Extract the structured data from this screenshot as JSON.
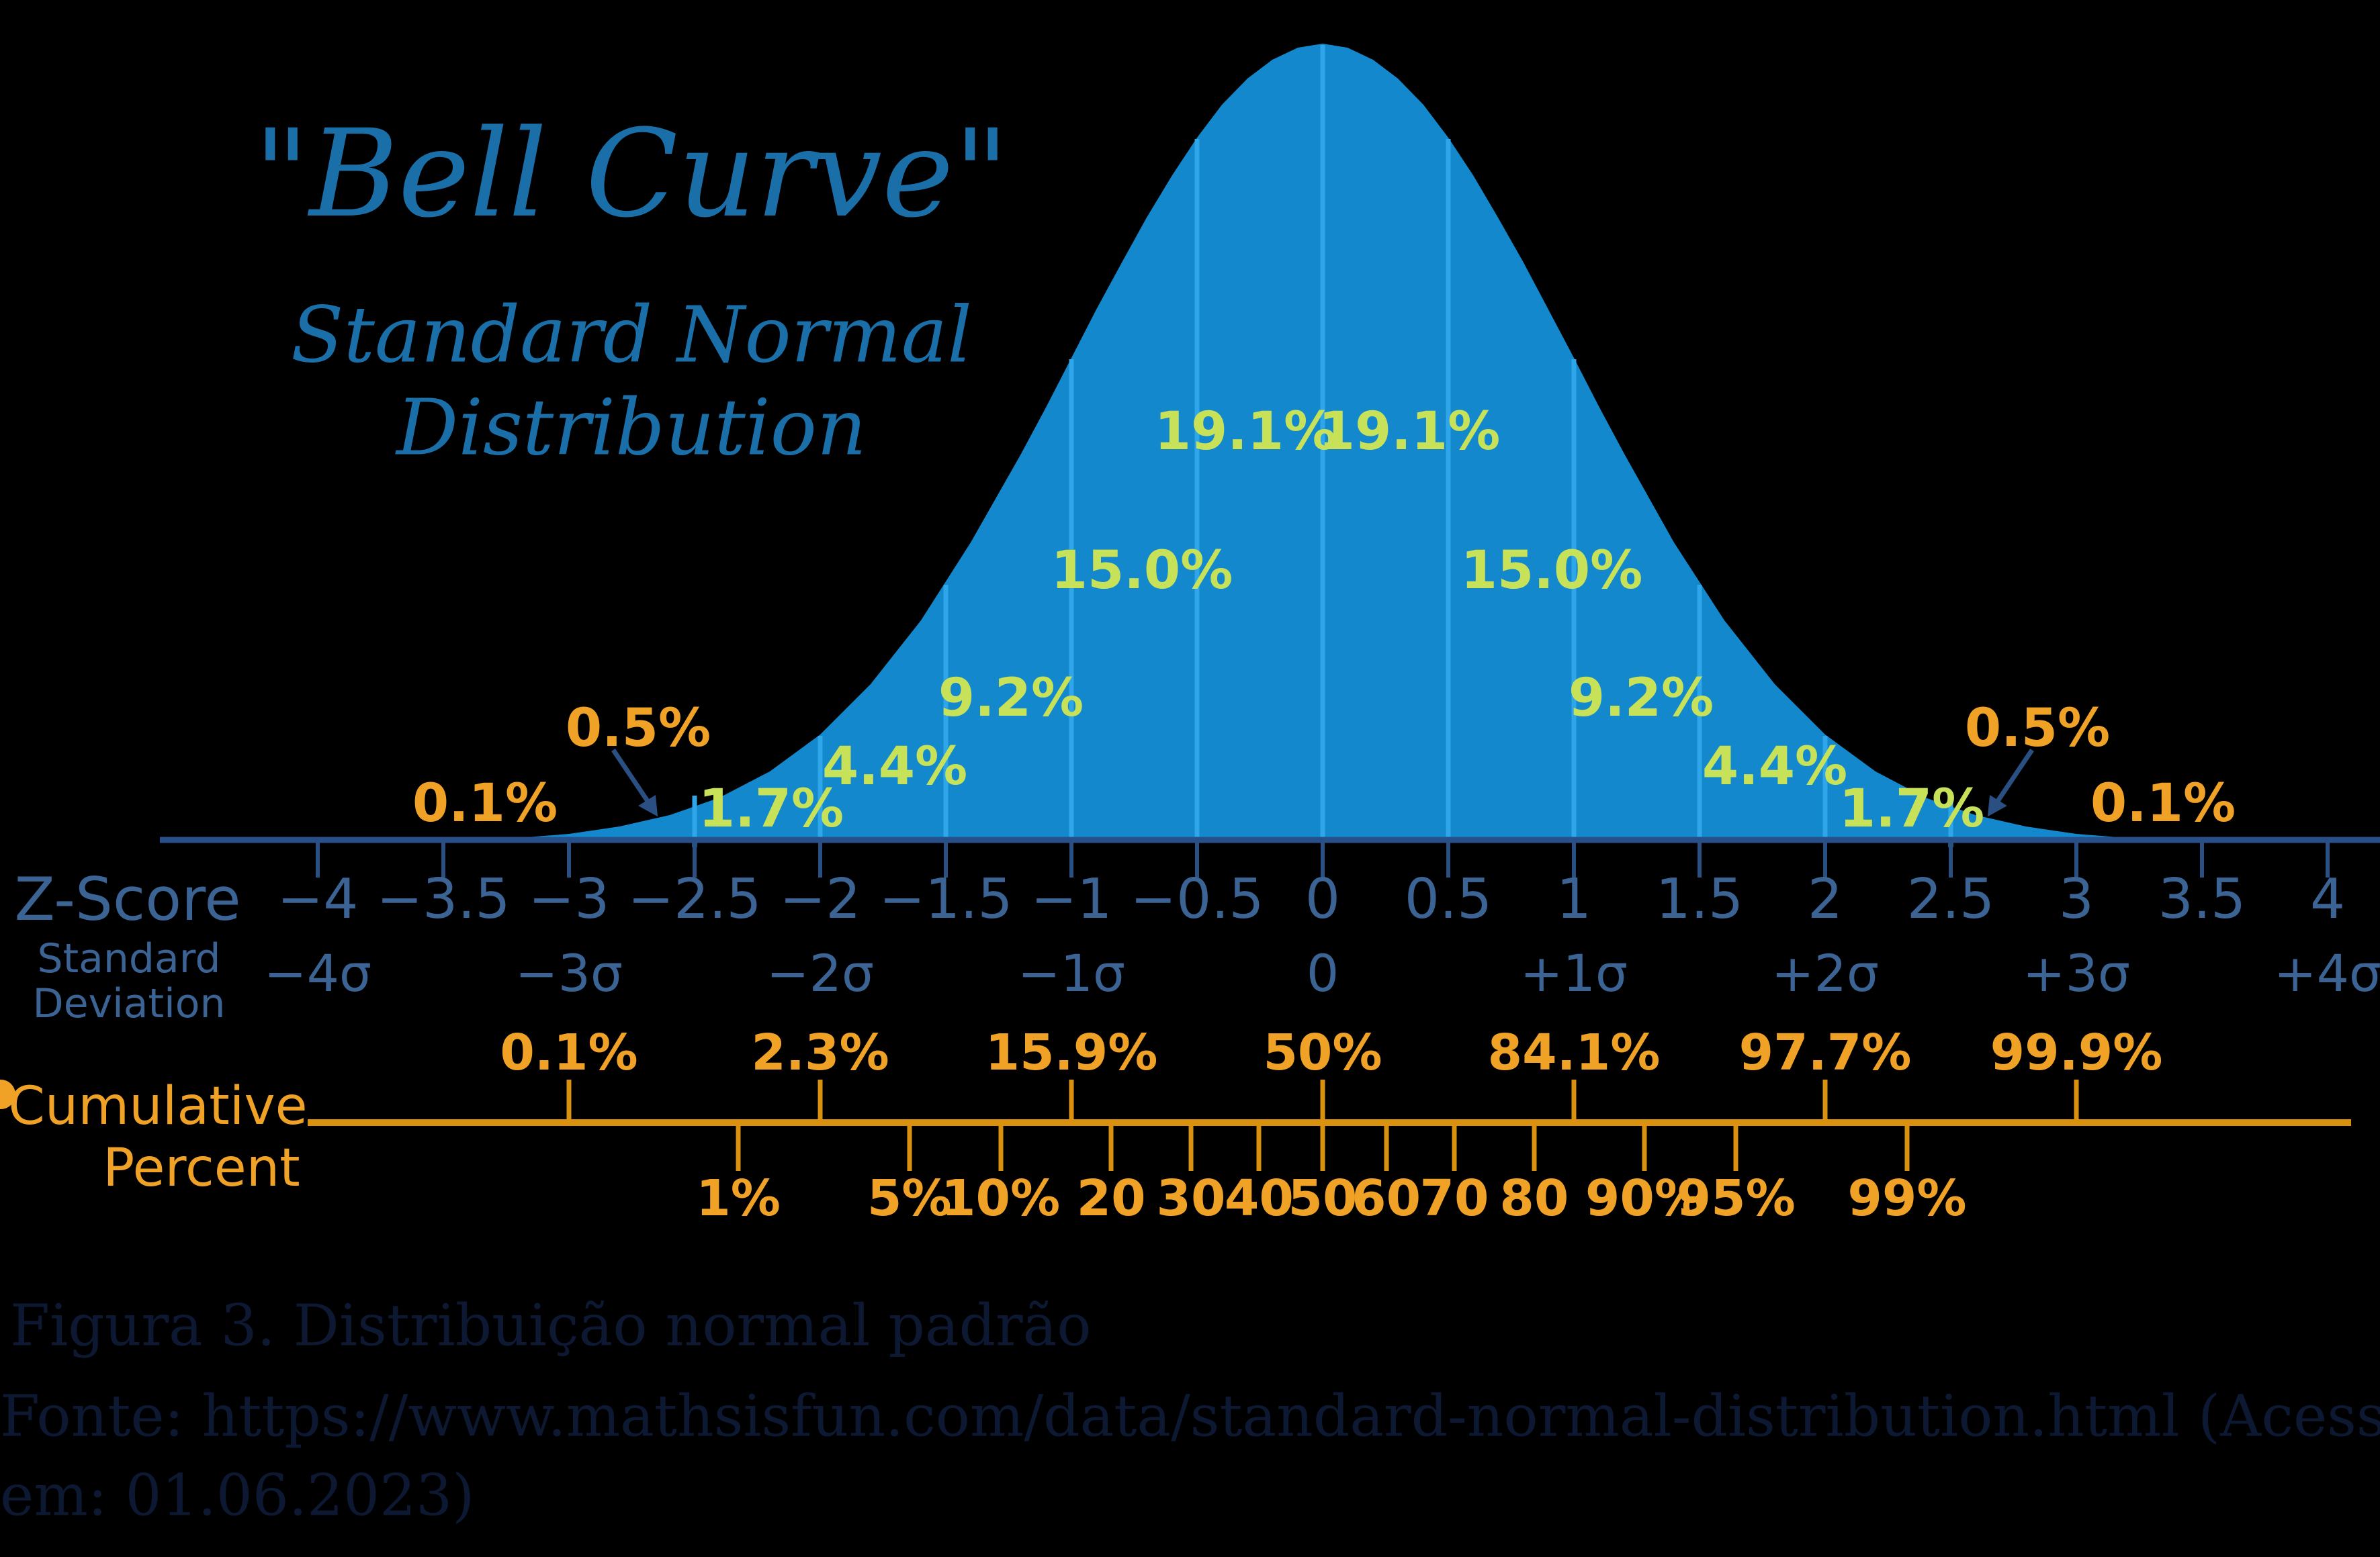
{
  "title": {
    "main": "\"Bell Curve\"",
    "sub1": "Standard Normal",
    "sub2": "Distribution"
  },
  "axis": {
    "z_score_label": "Z-Score",
    "std_dev_label_line1": "Standard",
    "std_dev_label_line2": "Deviation",
    "z_ticks": [
      {
        "z": -4,
        "label": "−4"
      },
      {
        "z": -3.5,
        "label": "−3.5"
      },
      {
        "z": -3,
        "label": "−3"
      },
      {
        "z": -2.5,
        "label": "−2.5"
      },
      {
        "z": -2,
        "label": "−2"
      },
      {
        "z": -1.5,
        "label": "−1.5"
      },
      {
        "z": -1,
        "label": "−1"
      },
      {
        "z": -0.5,
        "label": "−0.5"
      },
      {
        "z": 0,
        "label": "0"
      },
      {
        "z": 0.5,
        "label": "0.5"
      },
      {
        "z": 1,
        "label": "1"
      },
      {
        "z": 1.5,
        "label": "1.5"
      },
      {
        "z": 2,
        "label": "2"
      },
      {
        "z": 2.5,
        "label": "2.5"
      },
      {
        "z": 3,
        "label": "3"
      },
      {
        "z": 3.5,
        "label": "3.5"
      },
      {
        "z": 4,
        "label": "4"
      }
    ],
    "sigma_ticks": [
      {
        "z": -4,
        "label": "−4σ"
      },
      {
        "z": -3,
        "label": "−3σ"
      },
      {
        "z": -2,
        "label": "−2σ"
      },
      {
        "z": -1,
        "label": "−1σ"
      },
      {
        "z": 0,
        "label": "0"
      },
      {
        "z": 1,
        "label": "+1σ"
      },
      {
        "z": 2,
        "label": "+2σ"
      },
      {
        "z": 3,
        "label": "+3σ"
      },
      {
        "z": 4,
        "label": "+4σ"
      }
    ]
  },
  "cumulative": {
    "label_line1": "Cumulative",
    "label_line2": "Percent",
    "top": [
      {
        "z": -3,
        "label": "0.1%"
      },
      {
        "z": -2,
        "label": "2.3%"
      },
      {
        "z": -1,
        "label": "15.9%"
      },
      {
        "z": 0,
        "label": "50%"
      },
      {
        "z": 1,
        "label": "84.1%"
      },
      {
        "z": 2,
        "label": "97.7%"
      },
      {
        "z": 3,
        "label": "99.9%"
      }
    ],
    "bottom": [
      {
        "z": -2.326,
        "label": "1%"
      },
      {
        "z": -1.645,
        "label": "5%"
      },
      {
        "z": -1.282,
        "label": "10%"
      },
      {
        "z": -0.842,
        "label": "20"
      },
      {
        "z": -0.524,
        "label": "30"
      },
      {
        "z": -0.253,
        "label": "40"
      },
      {
        "z": 0,
        "label": "50"
      },
      {
        "z": 0.253,
        "label": "60"
      },
      {
        "z": 0.524,
        "label": "70"
      },
      {
        "z": 0.842,
        "label": "80"
      },
      {
        "z": 1.282,
        "label": "90%"
      },
      {
        "z": 1.645,
        "label": "95%"
      },
      {
        "z": 2.326,
        "label": "99%"
      }
    ]
  },
  "segment_labels": [
    "1.7%",
    "4.4%",
    "9.2%",
    "15.0%",
    "19.1%",
    "19.1%",
    "15.0%",
    "9.2%",
    "4.4%",
    "1.7%"
  ],
  "tail_labels": [
    "0.1%",
    "0.5%",
    "0.5%",
    "0.1%"
  ],
  "caption": {
    "line1": "Figura 3. Distribuição normal padrão",
    "line2": "Fonte: https://www.mathsisfun.com/data/standard-normal-distribution.html (Acesso",
    "line3": "em: 01.06.2023)"
  },
  "colors": {
    "background": "#000000",
    "curve_fill": "#1388cd",
    "gridline": "#2ea6e9",
    "axis_line": "#27508b",
    "axis_text": "#3b6394",
    "title_text": "#1a6fa9",
    "segment_text": "#c7e159",
    "tail_text": "#f0a227",
    "cumulative_line": "#da920e",
    "cumulative_text": "#f0a227",
    "caption_text": "#0d1832"
  },
  "chart_data": {
    "type": "area",
    "title": "\"Bell Curve\" Standard Normal Distribution",
    "xlabel": "Z-Score / Standard Deviation",
    "x_range": [
      -4,
      4
    ],
    "curve": "standard normal probability density, peak at z=0",
    "grid": "vertical dividers every 0.5σ from −2.5 to +2.5, clipped to curve",
    "segment_percentages": {
      "note": "area under curve per half-sigma band, symmetric",
      "categories": [
        "beyond ±3",
        "±2.5–3",
        "±2–2.5",
        "±1.5–2",
        "±1–1.5",
        "±0.5–1",
        "0–±0.5"
      ],
      "values_each_side": [
        0.1,
        0.5,
        1.7,
        4.4,
        9.2,
        15.0,
        19.1
      ]
    },
    "cumulative_percent": {
      "z": [
        -3,
        -2,
        -1,
        0,
        1,
        2,
        3
      ],
      "values": [
        "0.1%",
        "2.3%",
        "15.9%",
        "50%",
        "84.1%",
        "97.7%",
        "99.9%"
      ]
    },
    "percentiles": {
      "labels": [
        "1%",
        "5%",
        "10%",
        "20",
        "30",
        "40",
        "50",
        "60",
        "70",
        "80",
        "90%",
        "95%",
        "99%"
      ],
      "z": [
        -2.326,
        -1.645,
        -1.282,
        -0.842,
        -0.524,
        -0.253,
        0,
        0.253,
        0.524,
        0.842,
        1.282,
        1.645,
        2.326
      ]
    },
    "legend_position": "none"
  }
}
